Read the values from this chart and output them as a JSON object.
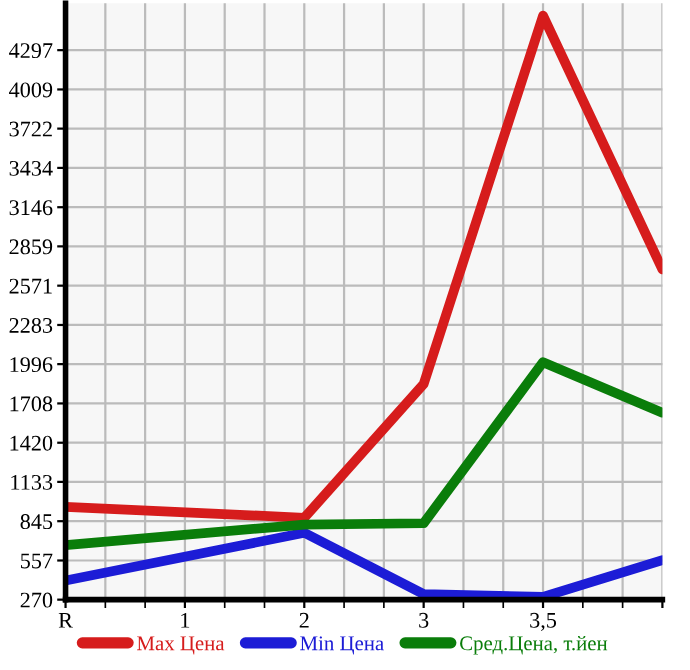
{
  "chart_data": {
    "type": "line",
    "categories": [
      "R",
      "1",
      "2",
      "3",
      "3,5",
      null
    ],
    "series": [
      {
        "name": "Max Цена",
        "color": "#d61c1c",
        "values": [
          950,
          null,
          870,
          1850,
          4550,
          2690
        ]
      },
      {
        "name": "Min Цена",
        "color": "#1c1cd6",
        "values": [
          410,
          null,
          760,
          310,
          290,
          560
        ]
      },
      {
        "name": "Сред.Цена, т.йен",
        "color": "#0a7d0a",
        "values": [
          670,
          null,
          820,
          830,
          2010,
          1640
        ]
      }
    ],
    "ylim": [
      270,
      4640
    ],
    "yticks": [
      270,
      557,
      845,
      1133,
      1420,
      1708,
      1996,
      2283,
      2571,
      2859,
      3146,
      3434,
      3722,
      4009,
      4297
    ],
    "grid": true,
    "legend": "bottom",
    "marker": "none",
    "line_style": "solid"
  }
}
